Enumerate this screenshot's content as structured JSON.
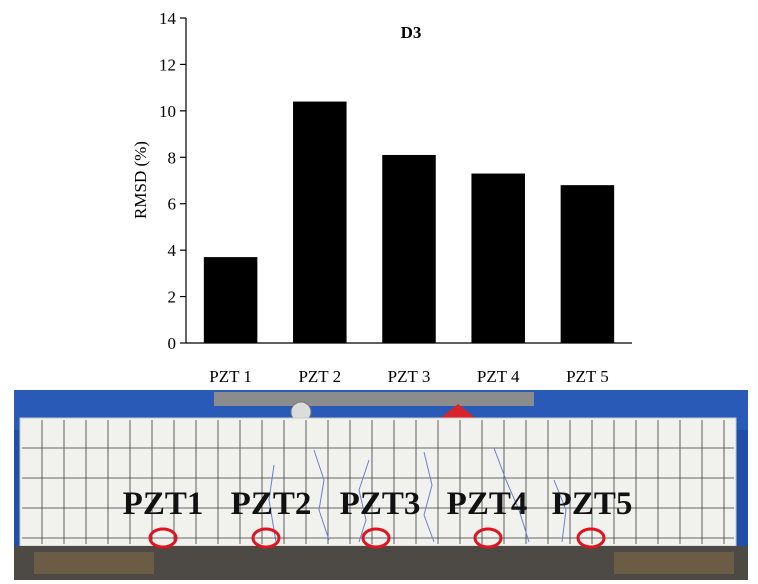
{
  "chart_data": {
    "type": "bar",
    "title": "D3",
    "xlabel": "",
    "ylabel": "RMSD (%)",
    "categories": [
      "PZT 1",
      "PZT 2",
      "PZT 3",
      "PZT 4",
      "PZT 5"
    ],
    "values": [
      3.7,
      10.4,
      8.1,
      7.3,
      6.8
    ],
    "ylim": [
      0,
      14
    ],
    "yticks": [
      0,
      2,
      4,
      6,
      8,
      10,
      12,
      14
    ],
    "grid": false,
    "bar_color": "#000000"
  },
  "photo": {
    "sensor_labels": [
      "PZT1",
      "PZT2",
      "PZT3",
      "PZT4",
      "PZT5"
    ],
    "marker_color": "#e0141e",
    "background_color": "#1f4fa8",
    "beam_color": "#f1f1ee"
  }
}
